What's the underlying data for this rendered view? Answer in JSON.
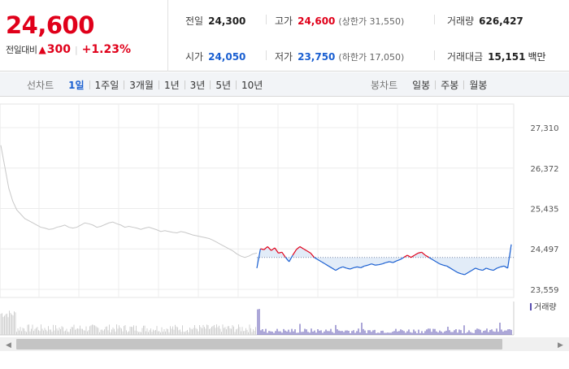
{
  "price": {
    "current": "24,600",
    "change_label": "전일대비",
    "change_icon": "up-triangle-icon",
    "change_value": "300",
    "change_pct": "+1.23%"
  },
  "stats": {
    "prev_close": {
      "label": "전일",
      "value": "24,300"
    },
    "high": {
      "label": "고가",
      "value": "24,600",
      "sub": "(상한가 31,550)"
    },
    "volume": {
      "label": "거래량",
      "value": "626,427"
    },
    "open": {
      "label": "시가",
      "value": "24,050"
    },
    "low": {
      "label": "저가",
      "value": "23,750",
      "sub": "(하한가 17,050)"
    },
    "amount": {
      "label": "거래대금",
      "value": "15,151",
      "unit": "백만"
    }
  },
  "line_tabs": {
    "label": "선차트",
    "items": [
      "1일",
      "1주일",
      "3개월",
      "1년",
      "3년",
      "5년",
      "10년"
    ],
    "active": 0
  },
  "candle_tabs": {
    "label": "봉차트",
    "items": [
      "일봉",
      "주봉",
      "월봉"
    ]
  },
  "colors": {
    "up": "#e0001a",
    "down": "#1a5fd1",
    "prev_day": "#c8c8c8",
    "volume": "#5a4fb0",
    "fill": "#dbe7f6"
  },
  "chart_data": {
    "type": "line",
    "y_ticks": [
      "27,310",
      "26,372",
      "25,435",
      "24,497",
      "23,559"
    ],
    "ylim": [
      23559,
      27310
    ],
    "reference_price": 24300,
    "volume_legend": "거래량",
    "prev_day_series": [
      26900,
      26400,
      25900,
      25600,
      25400,
      25300,
      25200,
      25150,
      25100,
      25050,
      25000,
      24980,
      24950,
      24960,
      25000,
      25020,
      25050,
      25000,
      24980,
      25000,
      25050,
      25100,
      25080,
      25050,
      25000,
      25020,
      25060,
      25100,
      25120,
      25080,
      25050,
      25000,
      25020,
      25000,
      24980,
      24950,
      24980,
      25000,
      24970,
      24940,
      24900,
      24920,
      24900,
      24880,
      24870,
      24900,
      24880,
      24850,
      24820,
      24800,
      24780,
      24760,
      24740,
      24700,
      24650,
      24600,
      24550,
      24500,
      24450,
      24380,
      24330,
      24300,
      24330,
      24380,
      24400
    ],
    "today_series": [
      24050,
      24500,
      24480,
      24550,
      24460,
      24520,
      24400,
      24420,
      24300,
      24200,
      24350,
      24480,
      24550,
      24500,
      24450,
      24400,
      24300,
      24250,
      24200,
      24150,
      24100,
      24050,
      24000,
      24050,
      24080,
      24050,
      24030,
      24060,
      24080,
      24060,
      24100,
      24120,
      24150,
      24120,
      24130,
      24150,
      24180,
      24200,
      24180,
      24220,
      24250,
      24300,
      24350,
      24300,
      24350,
      24400,
      24420,
      24350,
      24300,
      24250,
      24200,
      24150,
      24120,
      24100,
      24050,
      24000,
      23950,
      23920,
      23900,
      23950,
      24000,
      24050,
      24020,
      24000,
      24050,
      24020,
      24000,
      24050,
      24080,
      24100,
      24050,
      24600
    ]
  }
}
